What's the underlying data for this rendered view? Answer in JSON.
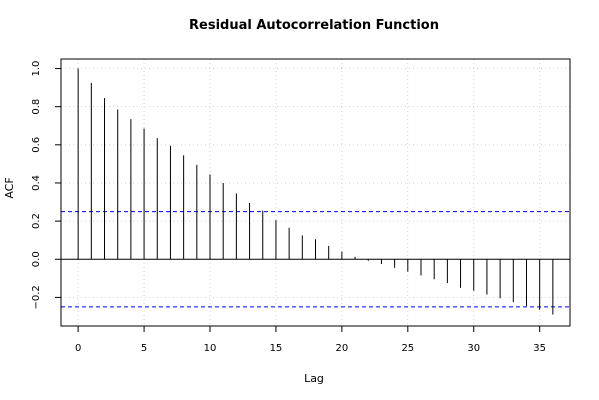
{
  "chart_data": {
    "type": "bar",
    "title": "Residual Autocorrelation Function",
    "xlabel": "Lag",
    "ylabel": "ACF",
    "xlim": [
      -1.3,
      37.3
    ],
    "ylim": [
      -0.35,
      1.05
    ],
    "x_ticks": [
      0,
      5,
      10,
      15,
      20,
      25,
      30,
      35
    ],
    "y_ticks": [
      -0.2,
      0.0,
      0.2,
      0.4,
      0.6,
      0.8,
      1.0
    ],
    "x_tick_labels": [
      "0",
      "5",
      "10",
      "15",
      "20",
      "25",
      "30",
      "35"
    ],
    "y_tick_labels": [
      "−0.2",
      "0.0",
      "0.2",
      "0.4",
      "0.6",
      "0.8",
      "1.0"
    ],
    "lags": [
      0,
      1,
      2,
      3,
      4,
      5,
      6,
      7,
      8,
      9,
      10,
      11,
      12,
      13,
      14,
      15,
      16,
      17,
      18,
      19,
      20,
      21,
      22,
      23,
      24,
      25,
      26,
      27,
      28,
      29,
      30,
      31,
      32,
      33,
      34,
      35,
      36
    ],
    "values": [
      1.0,
      0.925,
      0.845,
      0.785,
      0.735,
      0.685,
      0.635,
      0.595,
      0.545,
      0.495,
      0.445,
      0.4,
      0.345,
      0.295,
      0.255,
      0.205,
      0.165,
      0.125,
      0.105,
      0.07,
      0.04,
      0.013,
      -0.008,
      -0.025,
      -0.045,
      -0.065,
      -0.085,
      -0.105,
      -0.125,
      -0.15,
      -0.165,
      -0.185,
      -0.205,
      -0.225,
      -0.245,
      -0.265,
      -0.29
    ],
    "confidence_bounds": [
      0.25,
      -0.25
    ],
    "grid": true,
    "colors": {
      "bars": "#000000",
      "confidence_lines": "#0000ff",
      "zero_line": "#000000",
      "grid": "#d3d3d3"
    }
  }
}
